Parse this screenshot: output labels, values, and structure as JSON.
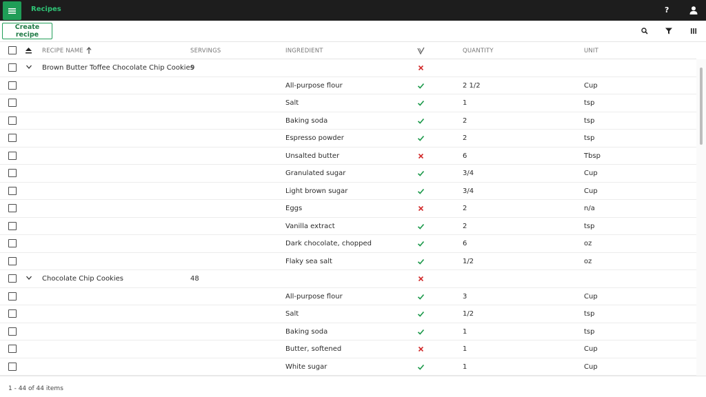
{
  "app": {
    "title": "Recipes"
  },
  "toolbar": {
    "create_label": "Create recipe"
  },
  "columns": {
    "recipe_name": "RECIPE NAME",
    "servings": "SERVINGS",
    "ingredient": "INGREDIENT",
    "quantity": "QUANTITY",
    "unit": "UNIT"
  },
  "rows": [
    {
      "type": "group",
      "name": "Brown Butter Toffee Chocolate Chip Cookies",
      "servings": "9",
      "ok": false
    },
    {
      "type": "item",
      "ingredient": "All-purpose flour",
      "ok": true,
      "quantity": "2 1/2",
      "unit": "Cup"
    },
    {
      "type": "item",
      "ingredient": "Salt",
      "ok": true,
      "quantity": "1",
      "unit": "tsp"
    },
    {
      "type": "item",
      "ingredient": "Baking soda",
      "ok": true,
      "quantity": "2",
      "unit": "tsp"
    },
    {
      "type": "item",
      "ingredient": "Espresso powder",
      "ok": true,
      "quantity": "2",
      "unit": "tsp"
    },
    {
      "type": "item",
      "ingredient": "Unsalted butter",
      "ok": false,
      "quantity": "6",
      "unit": "Tbsp"
    },
    {
      "type": "item",
      "ingredient": "Granulated sugar",
      "ok": true,
      "quantity": "3/4",
      "unit": "Cup"
    },
    {
      "type": "item",
      "ingredient": "Light brown sugar",
      "ok": true,
      "quantity": "3/4",
      "unit": "Cup"
    },
    {
      "type": "item",
      "ingredient": "Eggs",
      "ok": false,
      "quantity": "2",
      "unit": "n/a"
    },
    {
      "type": "item",
      "ingredient": "Vanilla extract",
      "ok": true,
      "quantity": "2",
      "unit": "tsp"
    },
    {
      "type": "item",
      "ingredient": "Dark chocolate, chopped",
      "ok": true,
      "quantity": "6",
      "unit": "oz"
    },
    {
      "type": "item",
      "ingredient": "Flaky sea salt",
      "ok": true,
      "quantity": "1/2",
      "unit": "oz"
    },
    {
      "type": "group",
      "name": "Chocolate Chip Cookies",
      "servings": "48",
      "ok": false
    },
    {
      "type": "item",
      "ingredient": "All-purpose flour",
      "ok": true,
      "quantity": "3",
      "unit": "Cup"
    },
    {
      "type": "item",
      "ingredient": "Salt",
      "ok": true,
      "quantity": "1/2",
      "unit": "tsp"
    },
    {
      "type": "item",
      "ingredient": "Baking soda",
      "ok": true,
      "quantity": "1",
      "unit": "tsp"
    },
    {
      "type": "item",
      "ingredient": "Butter, softened",
      "ok": false,
      "quantity": "1",
      "unit": "Cup"
    },
    {
      "type": "item",
      "ingredient": "White sugar",
      "ok": true,
      "quantity": "1",
      "unit": "Cup"
    },
    {
      "type": "item",
      "ingredient": "",
      "ok": null,
      "quantity": "",
      "unit": ""
    }
  ],
  "footer": {
    "items_label": "1 - 44 of 44 items"
  },
  "colors": {
    "accent": "#1f9d57",
    "ok": "#1e9a4c",
    "bad": "#d32f2f",
    "topbar": "#1d1d1d"
  }
}
